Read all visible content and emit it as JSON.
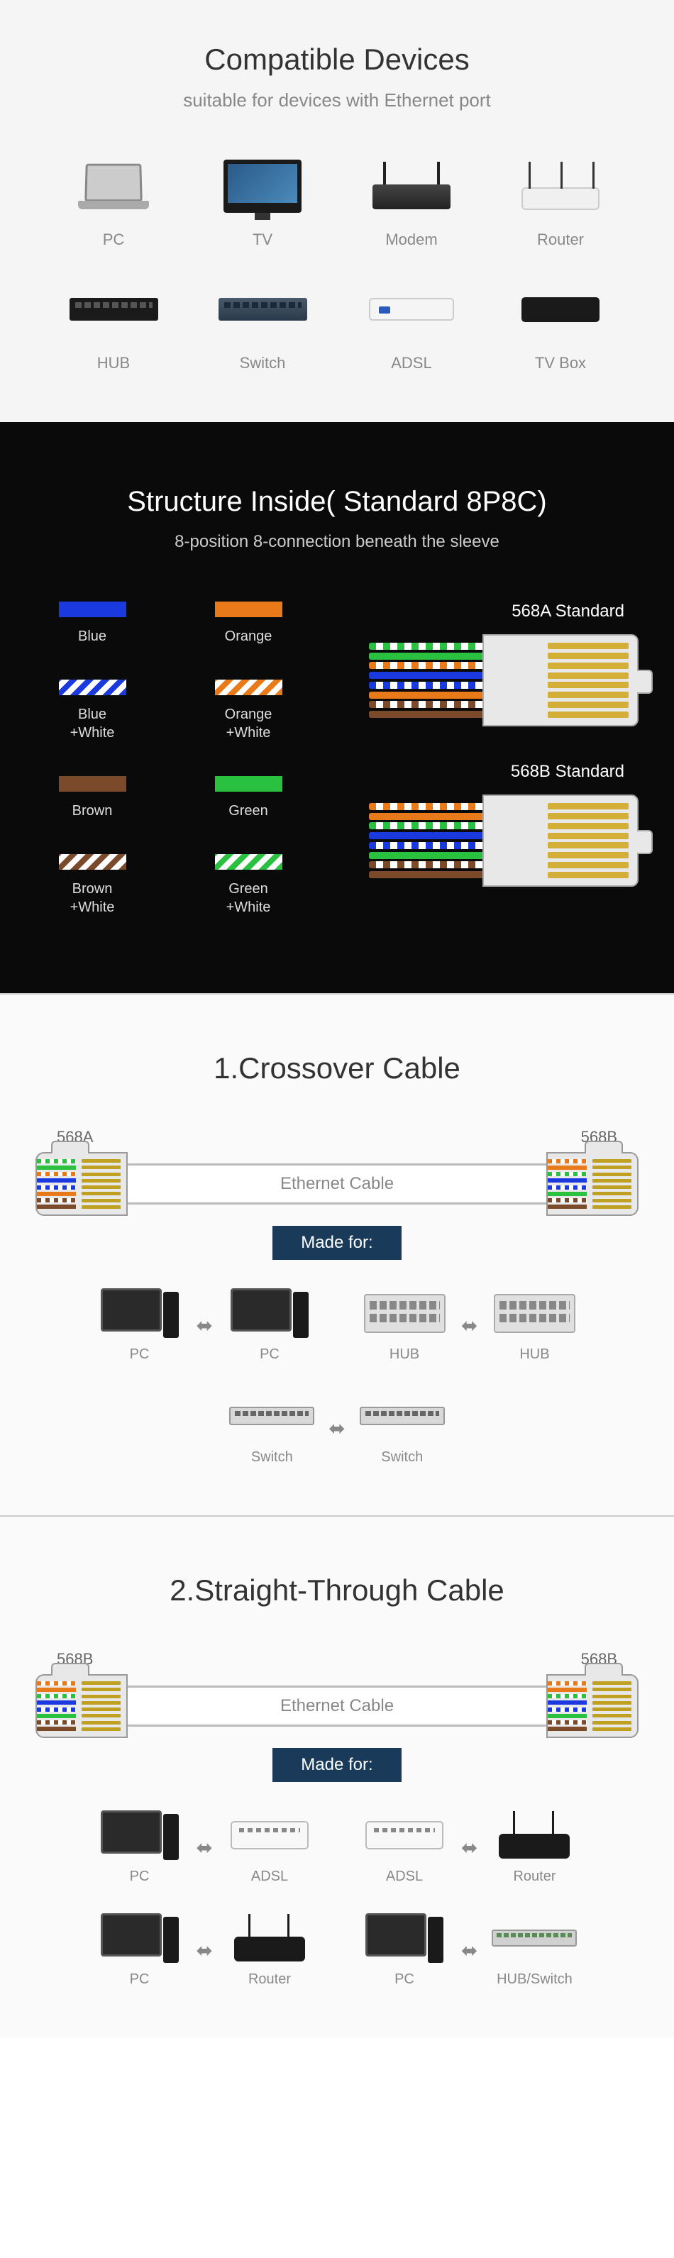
{
  "section1": {
    "title": "Compatible Devices",
    "subtitle": "suitable for devices with Ethernet port",
    "devices": [
      "PC",
      "TV",
      "Modem",
      "Router",
      "HUB",
      "Switch",
      "ADSL",
      "TV Box"
    ]
  },
  "section2": {
    "title": "Structure Inside( Standard 8P8C)",
    "subtitle": "8-position 8-connection beneath the sleeve",
    "colors": [
      {
        "label": "Blue",
        "hex": "#1a3ae0",
        "striped": false
      },
      {
        "label": "Orange",
        "hex": "#e87a1a",
        "striped": false
      },
      {
        "label": "Blue\n+White",
        "hex": "#1a3ae0",
        "striped": true
      },
      {
        "label": "Orange\n+White",
        "hex": "#e87a1a",
        "striped": true
      },
      {
        "label": "Brown",
        "hex": "#7a4a2a",
        "striped": false
      },
      {
        "label": "Green",
        "hex": "#2ac040",
        "striped": false
      },
      {
        "label": "Brown\n+White",
        "hex": "#7a4a2a",
        "striped": true
      },
      {
        "label": "Green\n+White",
        "hex": "#2ac040",
        "striped": true
      }
    ],
    "standards": [
      {
        "name": "568A Standard",
        "wires": [
          {
            "c": "#2ac040",
            "s": true
          },
          {
            "c": "#2ac040",
            "s": false
          },
          {
            "c": "#e87a1a",
            "s": true
          },
          {
            "c": "#1a3ae0",
            "s": false
          },
          {
            "c": "#1a3ae0",
            "s": true
          },
          {
            "c": "#e87a1a",
            "s": false
          },
          {
            "c": "#7a4a2a",
            "s": true
          },
          {
            "c": "#7a4a2a",
            "s": false
          }
        ]
      },
      {
        "name": "568B Standard",
        "wires": [
          {
            "c": "#e87a1a",
            "s": true
          },
          {
            "c": "#e87a1a",
            "s": false
          },
          {
            "c": "#2ac040",
            "s": true
          },
          {
            "c": "#1a3ae0",
            "s": false
          },
          {
            "c": "#1a3ae0",
            "s": true
          },
          {
            "c": "#2ac040",
            "s": false
          },
          {
            "c": "#7a4a2a",
            "s": true
          },
          {
            "c": "#7a4a2a",
            "s": false
          }
        ]
      }
    ]
  },
  "section3": {
    "title": "1.Crossover Cable",
    "left_std": "568A",
    "right_std": "568B",
    "cable_label": "Ethernet Cable",
    "made_for": "Made for:",
    "left_wires": [
      {
        "c": "#2ac040",
        "s": true
      },
      {
        "c": "#2ac040",
        "s": false
      },
      {
        "c": "#e87a1a",
        "s": true
      },
      {
        "c": "#1a3ae0",
        "s": false
      },
      {
        "c": "#1a3ae0",
        "s": true
      },
      {
        "c": "#e87a1a",
        "s": false
      },
      {
        "c": "#7a4a2a",
        "s": true
      },
      {
        "c": "#7a4a2a",
        "s": false
      }
    ],
    "right_wires": [
      {
        "c": "#e87a1a",
        "s": true
      },
      {
        "c": "#e87a1a",
        "s": false
      },
      {
        "c": "#2ac040",
        "s": true
      },
      {
        "c": "#1a3ae0",
        "s": false
      },
      {
        "c": "#1a3ae0",
        "s": true
      },
      {
        "c": "#2ac040",
        "s": false
      },
      {
        "c": "#7a4a2a",
        "s": true
      },
      {
        "c": "#7a4a2a",
        "s": false
      }
    ],
    "pairs": [
      {
        "l": "PC",
        "li": "ico-pc",
        "r": "PC",
        "ri": "ico-pc"
      },
      {
        "l": "HUB",
        "li": "ico-hub-lg",
        "r": "HUB",
        "ri": "ico-hub-lg"
      },
      {
        "l": "Switch",
        "li": "ico-switch-lg",
        "r": "Switch",
        "ri": "ico-switch-lg"
      }
    ]
  },
  "section4": {
    "title": "2.Straight-Through Cable",
    "left_std": "568B",
    "right_std": "568B",
    "cable_label": "Ethernet Cable",
    "made_for": "Made for:",
    "left_wires": [
      {
        "c": "#e87a1a",
        "s": true
      },
      {
        "c": "#e87a1a",
        "s": false
      },
      {
        "c": "#2ac040",
        "s": true
      },
      {
        "c": "#1a3ae0",
        "s": false
      },
      {
        "c": "#1a3ae0",
        "s": true
      },
      {
        "c": "#2ac040",
        "s": false
      },
      {
        "c": "#7a4a2a",
        "s": true
      },
      {
        "c": "#7a4a2a",
        "s": false
      }
    ],
    "right_wires": [
      {
        "c": "#e87a1a",
        "s": true
      },
      {
        "c": "#e87a1a",
        "s": false
      },
      {
        "c": "#2ac040",
        "s": true
      },
      {
        "c": "#1a3ae0",
        "s": false
      },
      {
        "c": "#1a3ae0",
        "s": true
      },
      {
        "c": "#2ac040",
        "s": false
      },
      {
        "c": "#7a4a2a",
        "s": true
      },
      {
        "c": "#7a4a2a",
        "s": false
      }
    ],
    "pairs": [
      {
        "l": "PC",
        "li": "ico-pc",
        "r": "ADSL",
        "ri": "ico-adsl2"
      },
      {
        "l": "ADSL",
        "li": "ico-adsl2",
        "r": "Router",
        "ri": "ico-router2"
      },
      {
        "l": "PC",
        "li": "ico-pc",
        "r": "Router",
        "ri": "ico-router2"
      },
      {
        "l": "PC",
        "li": "ico-pc",
        "r": "HUB/Switch",
        "ri": "ico-hubswitch"
      }
    ]
  },
  "arrow": "⬌"
}
